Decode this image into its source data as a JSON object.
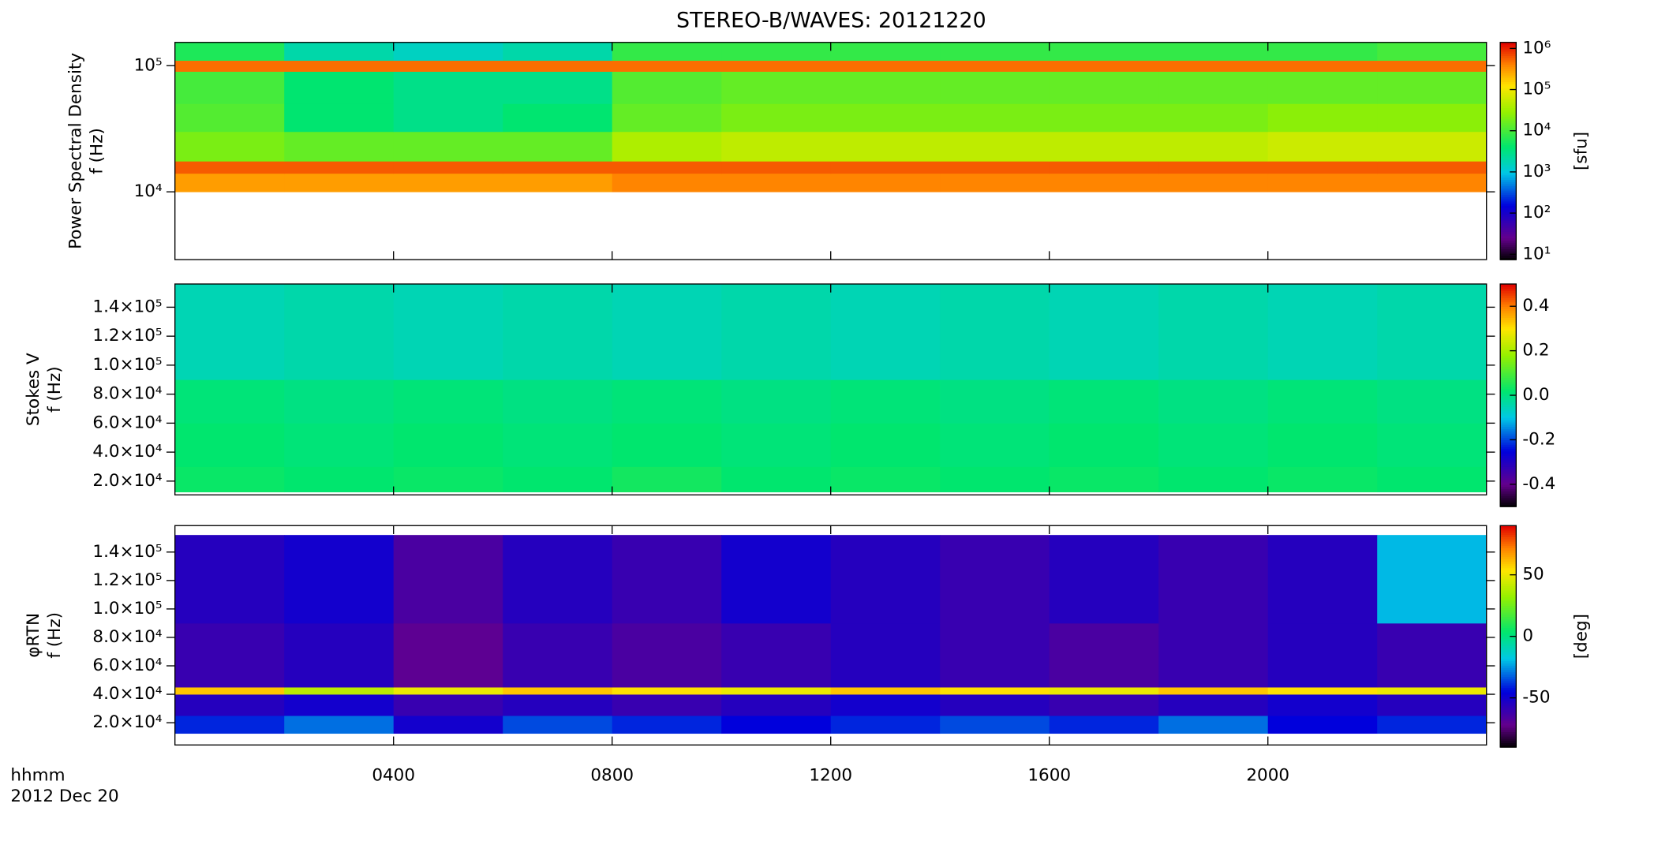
{
  "chart_data": [
    {
      "type": "heatmap",
      "title": "STEREO-B/WAVES: 20121220",
      "ylabel": [
        "Power Spectral Density",
        "f (Hz)"
      ],
      "xlim": [
        0,
        24
      ],
      "ylim": [
        2900,
        153000
      ],
      "ylog": true,
      "yticks": [
        {
          "value": 10000,
          "label": "10⁴"
        },
        {
          "value": 100000,
          "label": "10⁵"
        }
      ],
      "xticks": [
        {
          "value": 4,
          "label": "0400"
        },
        {
          "value": 8,
          "label": "0800"
        },
        {
          "value": 12,
          "label": "1200"
        },
        {
          "value": 16,
          "label": "1600"
        },
        {
          "value": 20,
          "label": "2000"
        }
      ],
      "xbins": [
        0,
        2,
        4,
        6,
        8,
        10,
        12,
        14,
        16,
        18,
        20,
        22,
        24
      ],
      "ybins": [
        10000,
        14000,
        17500,
        30000,
        50000,
        90000,
        110000,
        153000
      ],
      "z": [
        [
          300000,
          300000,
          300000,
          300000,
          400000,
          400000,
          400000,
          400000,
          400000,
          400000,
          400000,
          400000
        ],
        [
          600000,
          600000,
          600000,
          600000,
          600000,
          600000,
          600000,
          600000,
          600000,
          600000,
          600000,
          600000
        ],
        [
          20000,
          15000,
          15000,
          15000,
          40000,
          50000,
          50000,
          50000,
          50000,
          50000,
          60000,
          60000
        ],
        [
          12000,
          4000,
          3000,
          4000,
          15000,
          20000,
          20000,
          20000,
          20000,
          20000,
          25000,
          25000
        ],
        [
          10000,
          4000,
          3000,
          3000,
          12000,
          15000,
          15000,
          15000,
          15000,
          15000,
          15000,
          15000
        ],
        [
          500000,
          500000,
          500000,
          500000,
          500000,
          500000,
          500000,
          500000,
          500000,
          500000,
          500000,
          500000
        ],
        [
          6000,
          2000,
          1500,
          2000,
          8000,
          8000,
          8000,
          8000,
          8000,
          8000,
          8000,
          10000
        ]
      ],
      "clim": [
        7.4,
        1400000
      ],
      "clog": true,
      "clabel": "[sfu]",
      "cticks": [
        {
          "value": 10,
          "label": "10¹"
        },
        {
          "value": 100,
          "label": "10²"
        },
        {
          "value": 1000,
          "label": "10³"
        },
        {
          "value": 10000,
          "label": "10⁴"
        },
        {
          "value": 100000,
          "label": "10⁵"
        },
        {
          "value": 1000000,
          "label": "10⁶"
        }
      ]
    },
    {
      "type": "heatmap",
      "ylabel": [
        "Stokes V",
        "f (Hz)"
      ],
      "xlim": [
        0,
        24
      ],
      "ylim": [
        10500,
        156000
      ],
      "yticks": [
        {
          "value": 20000,
          "label": "2.0×10⁴"
        },
        {
          "value": 40000,
          "label": "4.0×10⁴"
        },
        {
          "value": 60000,
          "label": "6.0×10⁴"
        },
        {
          "value": 80000,
          "label": "8.0×10⁴"
        },
        {
          "value": 100000,
          "label": "1.0×10⁵"
        },
        {
          "value": 120000,
          "label": "1.2×10⁵"
        },
        {
          "value": 140000,
          "label": "1.4×10⁵"
        }
      ],
      "xticks": [
        4,
        8,
        12,
        16,
        20
      ],
      "xbins": [
        0,
        2,
        4,
        6,
        8,
        10,
        12,
        14,
        16,
        18,
        20,
        22,
        24
      ],
      "ybins": [
        12500,
        30000,
        60000,
        90000,
        156000
      ],
      "z": [
        [
          0.03,
          0.02,
          0.03,
          0.02,
          0.04,
          0.02,
          0.03,
          0.02,
          0.03,
          0.02,
          0.03,
          0.02
        ],
        [
          0.02,
          0.01,
          0.02,
          0.01,
          0.02,
          0.01,
          0.02,
          0.01,
          0.02,
          0.01,
          0.02,
          0.01
        ],
        [
          0.01,
          0,
          0.01,
          0,
          0.01,
          0,
          0.01,
          0,
          0.01,
          0,
          0.01,
          0
        ],
        [
          -0.05,
          -0.04,
          -0.05,
          -0.04,
          -0.05,
          -0.04,
          -0.05,
          -0.04,
          -0.05,
          -0.04,
          -0.05,
          -0.04
        ]
      ],
      "clim": [
        -0.5,
        0.5
      ],
      "cticks": [
        -0.4,
        -0.2,
        {
          "value": 0,
          "label": "0.0"
        },
        0.2,
        0.4
      ]
    },
    {
      "type": "heatmap",
      "ylabel": [
        "φRTN",
        "f (Hz)"
      ],
      "xlim": [
        0,
        24
      ],
      "ylim": [
        4350,
        158600
      ],
      "yticks": [
        {
          "value": 20000,
          "label": "2.0×10⁴"
        },
        {
          "value": 40000,
          "label": "4.0×10⁴"
        },
        {
          "value": 60000,
          "label": "6.0×10⁴"
        },
        {
          "value": 80000,
          "label": "8.0×10⁴"
        },
        {
          "value": 100000,
          "label": "1.0×10⁵"
        },
        {
          "value": 120000,
          "label": "1.2×10⁵"
        },
        {
          "value": 140000,
          "label": "1.4×10⁵"
        }
      ],
      "xticks": [
        4,
        8,
        12,
        16,
        20
      ],
      "xbins": [
        0,
        2,
        4,
        6,
        8,
        10,
        12,
        14,
        16,
        18,
        20,
        22,
        24
      ],
      "ybins": [
        12500,
        25000,
        40000,
        45000,
        90000,
        152000
      ],
      "z": [
        [
          -40,
          -30,
          -50,
          -35,
          -40,
          -45,
          -40,
          -35,
          -40,
          -30,
          -45,
          -40
        ],
        [
          -55,
          -50,
          -60,
          -55,
          -60,
          -55,
          -50,
          -55,
          -60,
          -55,
          -50,
          -55
        ],
        [
          60,
          40,
          50,
          60,
          55,
          50,
          60,
          55,
          50,
          60,
          55,
          50
        ],
        [
          -60,
          -55,
          -70,
          -60,
          -65,
          -60,
          -55,
          -60,
          -65,
          -60,
          -55,
          -60
        ],
        [
          -55,
          -50,
          -65,
          -55,
          -60,
          -50,
          -55,
          -60,
          -55,
          -60,
          -55,
          -20
        ]
      ],
      "clim": [
        -90,
        90
      ],
      "clabel": "[deg]",
      "cticks": [
        -50,
        0,
        50
      ],
      "x_unit_label": "hhmm",
      "date_label": "2012 Dec 20"
    }
  ]
}
